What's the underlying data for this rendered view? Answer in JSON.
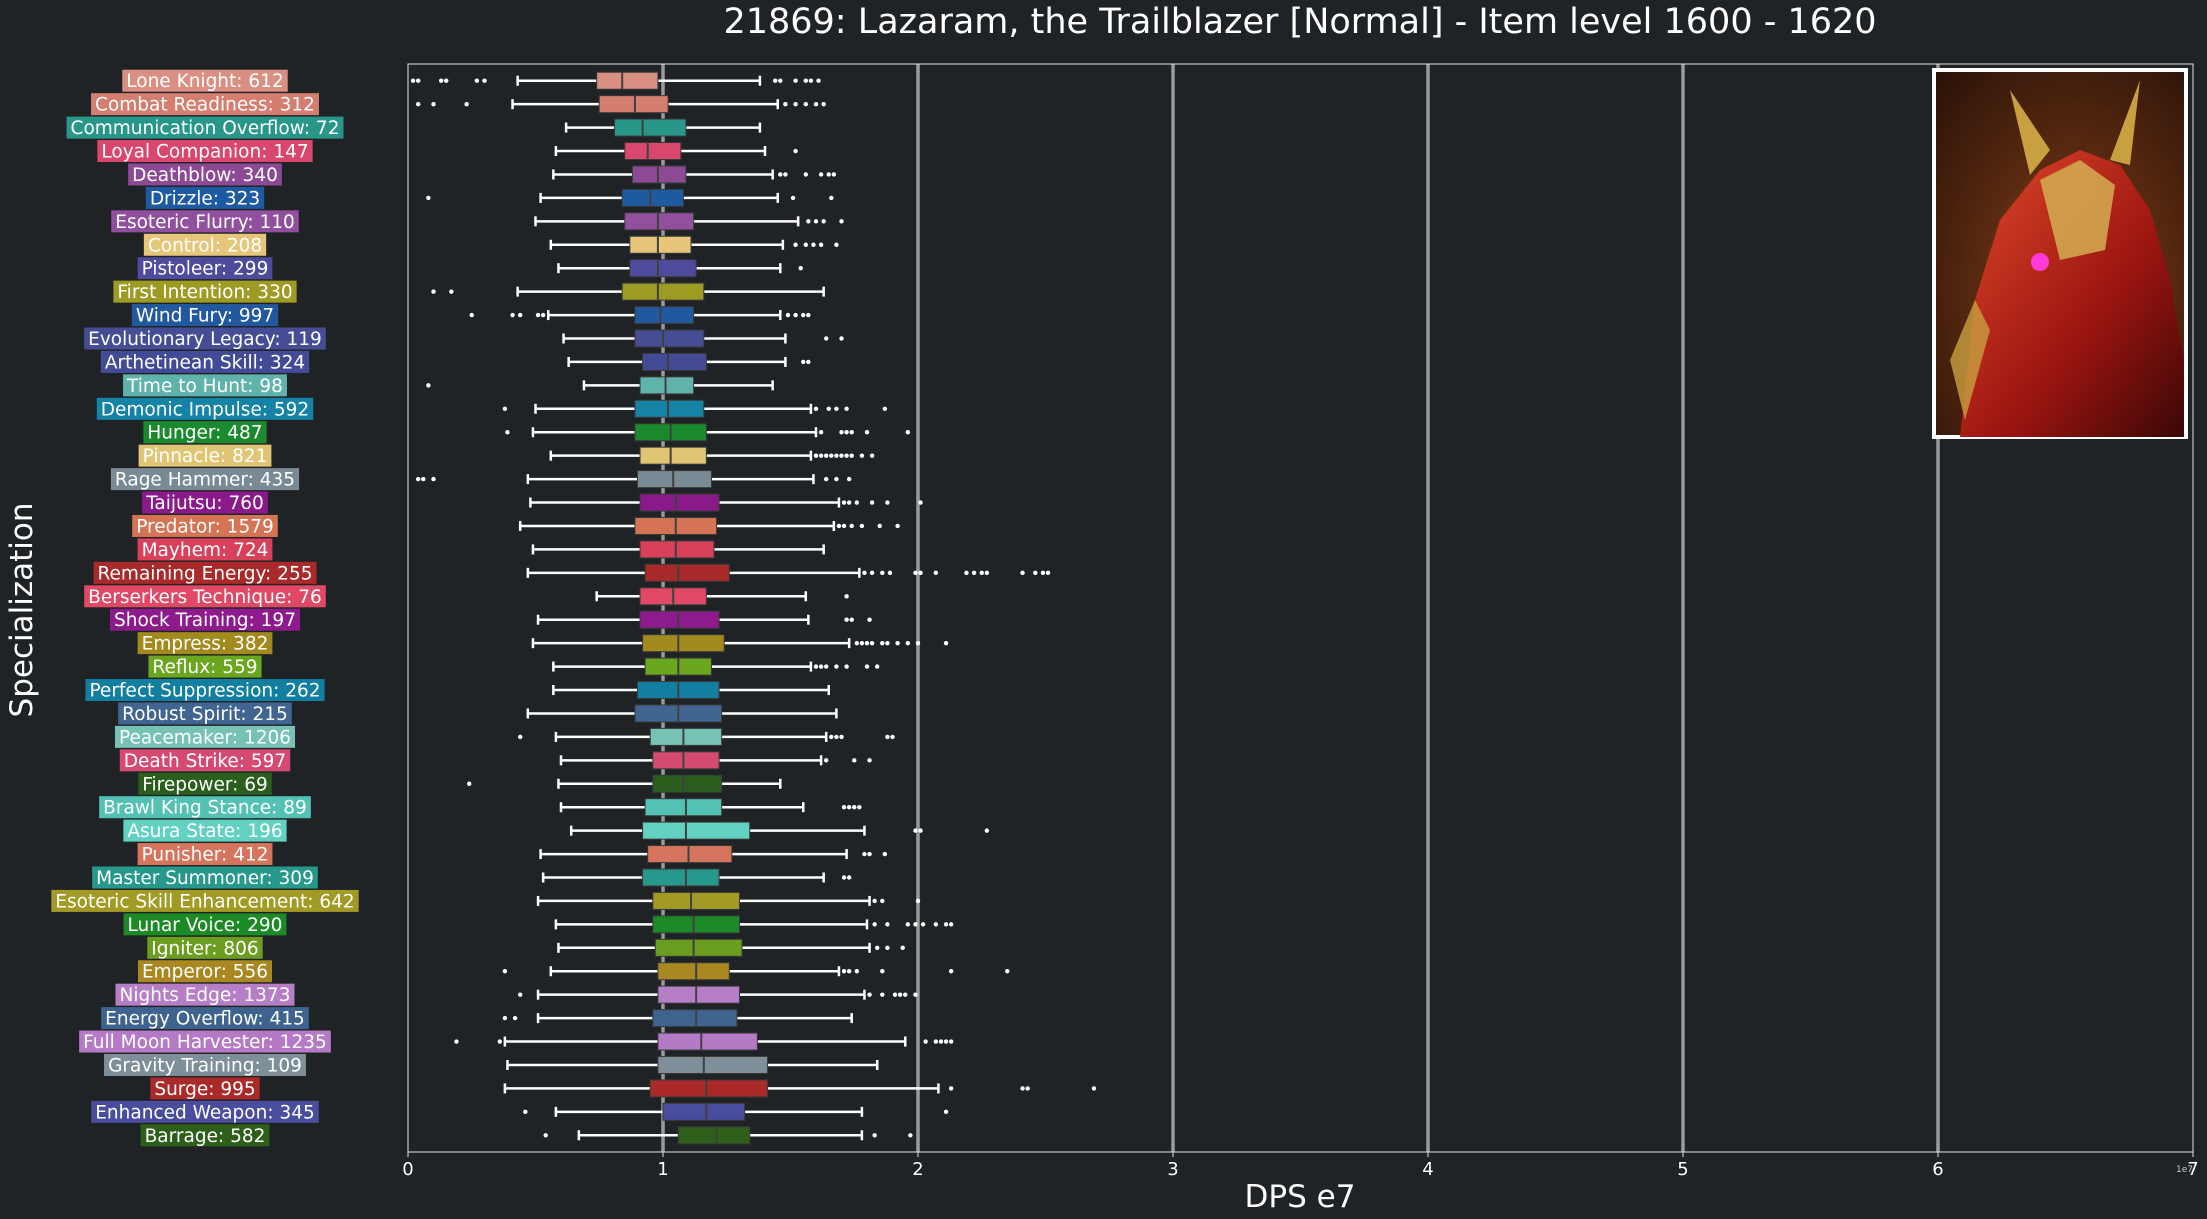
{
  "title": "21869: Lazaram, the Trailblazer [Normal] - Item level 1600 - 1620",
  "chart_data": {
    "type": "boxplot",
    "title": "21869: Lazaram, the Trailblazer [Normal] - Item level 1600 - 1620",
    "xlabel": "DPS e7",
    "ylabel": "Specialization",
    "xlim": [
      0,
      7
    ],
    "x_ticks": [
      "0",
      "1",
      "2",
      "3",
      "4",
      "5",
      "6",
      "7"
    ],
    "x_offset_label": "1e7",
    "grid": "vertical",
    "series": [
      {
        "label": "Lone Knight: 612",
        "color": "#d98f82",
        "whislo": 0.43,
        "q1": 0.74,
        "med": 0.84,
        "q3": 0.98,
        "whishi": 1.38,
        "fliers": [
          0.02,
          0.04,
          0.13,
          0.15,
          0.27,
          0.3,
          1.44,
          1.46,
          1.52,
          1.56,
          1.58,
          1.61
        ]
      },
      {
        "label": "Combat Readiness: 312",
        "color": "#d47e70",
        "whislo": 0.41,
        "q1": 0.75,
        "med": 0.89,
        "q3": 1.02,
        "whishi": 1.45,
        "fliers": [
          0.04,
          0.1,
          0.23,
          1.48,
          1.52,
          1.56,
          1.6,
          1.63
        ]
      },
      {
        "label": "Communication Overflow: 72",
        "color": "#28978a",
        "whislo": 0.62,
        "q1": 0.81,
        "med": 0.92,
        "q3": 1.09,
        "whishi": 1.38,
        "fliers": []
      },
      {
        "label": "Loyal Companion: 147",
        "color": "#d9476c",
        "whislo": 0.58,
        "q1": 0.85,
        "med": 0.94,
        "q3": 1.07,
        "whishi": 1.4,
        "fliers": [
          1.52
        ]
      },
      {
        "label": "Deathblow: 340",
        "color": "#8c4a94",
        "whislo": 0.57,
        "q1": 0.88,
        "med": 0.98,
        "q3": 1.09,
        "whishi": 1.43,
        "fliers": [
          1.46,
          1.48,
          1.56,
          1.62,
          1.65,
          1.67
        ]
      },
      {
        "label": "Drizzle: 323",
        "color": "#1e5aa1",
        "whislo": 0.52,
        "q1": 0.84,
        "med": 0.95,
        "q3": 1.08,
        "whishi": 1.45,
        "fliers": [
          0.08,
          1.51,
          1.66
        ]
      },
      {
        "label": "Esoteric Flurry: 110",
        "color": "#91509e",
        "whislo": 0.5,
        "q1": 0.85,
        "med": 0.98,
        "q3": 1.12,
        "whishi": 1.53,
        "fliers": [
          1.57,
          1.6,
          1.63,
          1.7
        ]
      },
      {
        "label": "Control: 208",
        "color": "#e6c67a",
        "whislo": 0.56,
        "q1": 0.87,
        "med": 0.98,
        "q3": 1.11,
        "whishi": 1.47,
        "fliers": [
          1.52,
          1.56,
          1.59,
          1.62,
          1.68
        ]
      },
      {
        "label": "Pistoleer: 299",
        "color": "#4e4b9c",
        "whislo": 0.59,
        "q1": 0.87,
        "med": 0.98,
        "q3": 1.13,
        "whishi": 1.46,
        "fliers": [
          1.54
        ]
      },
      {
        "label": "First Intention: 330",
        "color": "#9e9b24",
        "whislo": 0.43,
        "q1": 0.84,
        "med": 0.98,
        "q3": 1.16,
        "whishi": 1.63,
        "fliers": [
          0.1,
          0.17
        ]
      },
      {
        "label": "Wind Fury: 997",
        "color": "#22599e",
        "whislo": 0.55,
        "q1": 0.89,
        "med": 0.99,
        "q3": 1.12,
        "whishi": 1.46,
        "fliers": [
          0.25,
          0.41,
          0.44,
          0.51,
          0.53,
          1.49,
          1.52,
          1.55,
          1.57
        ]
      },
      {
        "label": "Evolutionary Legacy: 119",
        "color": "#464d94",
        "whislo": 0.61,
        "q1": 0.89,
        "med": 1.0,
        "q3": 1.16,
        "whishi": 1.48,
        "fliers": [
          1.64,
          1.7
        ]
      },
      {
        "label": "Arthetinean Skill: 324",
        "color": "#444b96",
        "whislo": 0.63,
        "q1": 0.92,
        "med": 1.02,
        "q3": 1.17,
        "whishi": 1.48,
        "fliers": [
          1.55,
          1.57
        ]
      },
      {
        "label": "Time to Hunt: 98",
        "color": "#5fb3ab",
        "whislo": 0.69,
        "q1": 0.91,
        "med": 1.01,
        "q3": 1.12,
        "whishi": 1.43,
        "fliers": [
          0.08
        ]
      },
      {
        "label": "Demonic Impulse: 592",
        "color": "#1583a6",
        "whislo": 0.5,
        "q1": 0.89,
        "med": 1.02,
        "q3": 1.16,
        "whishi": 1.58,
        "fliers": [
          0.38,
          1.6,
          1.65,
          1.68,
          1.72,
          1.87
        ]
      },
      {
        "label": "Hunger: 487",
        "color": "#1b8a2e",
        "whislo": 0.49,
        "q1": 0.89,
        "med": 1.03,
        "q3": 1.17,
        "whishi": 1.6,
        "fliers": [
          0.39,
          1.62,
          1.7,
          1.72,
          1.74,
          1.8,
          1.96
        ]
      },
      {
        "label": "Pinnacle: 821",
        "color": "#e0c674",
        "whislo": 0.56,
        "q1": 0.91,
        "med": 1.03,
        "q3": 1.17,
        "whishi": 1.58,
        "fliers": [
          1.6,
          1.62,
          1.64,
          1.66,
          1.68,
          1.7,
          1.72,
          1.74,
          1.78,
          1.82
        ]
      },
      {
        "label": "Rage Hammer: 435",
        "color": "#7a8a94",
        "whislo": 0.47,
        "q1": 0.9,
        "med": 1.04,
        "q3": 1.19,
        "whishi": 1.59,
        "fliers": [
          0.04,
          0.06,
          0.1,
          1.64,
          1.68,
          1.73
        ]
      },
      {
        "label": "Taijutsu: 760",
        "color": "#8a1a8a",
        "whislo": 0.48,
        "q1": 0.91,
        "med": 1.05,
        "q3": 1.22,
        "whishi": 1.69,
        "fliers": [
          1.71,
          1.73,
          1.76,
          1.82,
          1.88,
          2.01
        ]
      },
      {
        "label": "Predator: 1579",
        "color": "#d47454",
        "whislo": 0.44,
        "q1": 0.89,
        "med": 1.05,
        "q3": 1.21,
        "whishi": 1.67,
        "fliers": [
          1.69,
          1.71,
          1.74,
          1.78,
          1.85,
          1.92
        ]
      },
      {
        "label": "Mayhem: 724",
        "color": "#d9405a",
        "whislo": 0.49,
        "q1": 0.91,
        "med": 1.05,
        "q3": 1.2,
        "whishi": 1.63,
        "fliers": []
      },
      {
        "label": "Remaining Energy: 255",
        "color": "#a82a2a",
        "whislo": 0.47,
        "q1": 0.93,
        "med": 1.06,
        "q3": 1.26,
        "whishi": 1.77,
        "fliers": [
          1.79,
          1.82,
          1.86,
          1.89,
          1.99,
          2.01,
          2.07,
          2.19,
          2.22,
          2.25,
          2.27,
          2.41,
          2.46,
          2.49,
          2.51
        ]
      },
      {
        "label": "Berserkers Technique: 76",
        "color": "#e04866",
        "whislo": 0.74,
        "q1": 0.91,
        "med": 1.04,
        "q3": 1.17,
        "whishi": 1.56,
        "fliers": [
          1.72
        ]
      },
      {
        "label": "Shock Training: 197",
        "color": "#8e1b8e",
        "whislo": 0.51,
        "q1": 0.91,
        "med": 1.06,
        "q3": 1.22,
        "whishi": 1.57,
        "fliers": [
          1.72,
          1.74,
          1.81
        ]
      },
      {
        "label": "Empress: 382",
        "color": "#a38a1e",
        "whislo": 0.49,
        "q1": 0.92,
        "med": 1.06,
        "q3": 1.24,
        "whishi": 1.73,
        "fliers": [
          1.76,
          1.78,
          1.8,
          1.82,
          1.86,
          1.88,
          1.92,
          1.96,
          2.0,
          2.11
        ]
      },
      {
        "label": "Reflux: 559",
        "color": "#6aa61e",
        "whislo": 0.57,
        "q1": 0.93,
        "med": 1.06,
        "q3": 1.19,
        "whishi": 1.58,
        "fliers": [
          1.6,
          1.62,
          1.64,
          1.68,
          1.72,
          1.8,
          1.84
        ]
      },
      {
        "label": "Perfect Suppression: 262",
        "color": "#127ea0",
        "whislo": 0.57,
        "q1": 0.9,
        "med": 1.06,
        "q3": 1.22,
        "whishi": 1.65,
        "fliers": []
      },
      {
        "label": "Robust Spirit: 215",
        "color": "#3f6590",
        "whislo": 0.47,
        "q1": 0.89,
        "med": 1.06,
        "q3": 1.23,
        "whishi": 1.68,
        "fliers": []
      },
      {
        "label": "Peacemaker: 1206",
        "color": "#76c2b4",
        "whislo": 0.58,
        "q1": 0.95,
        "med": 1.08,
        "q3": 1.23,
        "whishi": 1.64,
        "fliers": [
          0.44,
          1.66,
          1.68,
          1.7,
          1.88,
          1.9
        ]
      },
      {
        "label": "Death Strike: 597",
        "color": "#d54a70",
        "whislo": 0.6,
        "q1": 0.96,
        "med": 1.08,
        "q3": 1.22,
        "whishi": 1.62,
        "fliers": [
          1.64,
          1.75,
          1.81
        ]
      },
      {
        "label": "Firepower: 69",
        "color": "#2a5e1c",
        "whislo": 0.59,
        "q1": 0.96,
        "med": 1.08,
        "q3": 1.23,
        "whishi": 1.46,
        "fliers": [
          0.24
        ]
      },
      {
        "label": "Brawl King Stance: 89",
        "color": "#53c2b4",
        "whislo": 0.6,
        "q1": 0.93,
        "med": 1.09,
        "q3": 1.23,
        "whishi": 1.55,
        "fliers": [
          1.71,
          1.73,
          1.75,
          1.77
        ]
      },
      {
        "label": "Asura State: 196",
        "color": "#62d1c2",
        "whislo": 0.64,
        "q1": 0.92,
        "med": 1.09,
        "q3": 1.34,
        "whishi": 1.79,
        "fliers": [
          1.99,
          2.01,
          2.27
        ]
      },
      {
        "label": "Punisher: 412",
        "color": "#d6755e",
        "whislo": 0.52,
        "q1": 0.94,
        "med": 1.1,
        "q3": 1.27,
        "whishi": 1.72,
        "fliers": [
          1.79,
          1.81,
          1.87
        ]
      },
      {
        "label": "Master Summoner: 309",
        "color": "#27988c",
        "whislo": 0.53,
        "q1": 0.92,
        "med": 1.09,
        "q3": 1.22,
        "whishi": 1.63,
        "fliers": [
          1.71,
          1.73
        ]
      },
      {
        "label": "Esoteric Skill Enhancement: 642",
        "color": "#a19a24",
        "whislo": 0.51,
        "q1": 0.96,
        "med": 1.11,
        "q3": 1.3,
        "whishi": 1.81,
        "fliers": [
          1.83,
          1.86,
          2.0
        ]
      },
      {
        "label": "Lunar Voice: 290",
        "color": "#1c8a26",
        "whislo": 0.58,
        "q1": 0.96,
        "med": 1.12,
        "q3": 1.3,
        "whishi": 1.8,
        "fliers": [
          1.83,
          1.88,
          1.96,
          1.99,
          2.02,
          2.07,
          2.11,
          2.13
        ]
      },
      {
        "label": "Igniter: 806",
        "color": "#6b9e20",
        "whislo": 0.59,
        "q1": 0.97,
        "med": 1.12,
        "q3": 1.31,
        "whishi": 1.81,
        "fliers": [
          1.84,
          1.88,
          1.94
        ]
      },
      {
        "label": "Emperor: 556",
        "color": "#a98822",
        "whislo": 0.56,
        "q1": 0.98,
        "med": 1.13,
        "q3": 1.26,
        "whishi": 1.69,
        "fliers": [
          0.38,
          1.71,
          1.73,
          1.76,
          1.86,
          2.13,
          2.35
        ]
      },
      {
        "label": "Nights Edge: 1373",
        "color": "#b67ec6",
        "whislo": 0.51,
        "q1": 0.98,
        "med": 1.13,
        "q3": 1.3,
        "whishi": 1.79,
        "fliers": [
          0.44,
          1.81,
          1.86,
          1.91,
          1.93,
          1.95,
          1.99
        ]
      },
      {
        "label": "Energy Overflow: 415",
        "color": "#3d638e",
        "whislo": 0.51,
        "q1": 0.96,
        "med": 1.13,
        "q3": 1.29,
        "whishi": 1.74,
        "fliers": [
          0.38,
          0.42
        ]
      },
      {
        "label": "Full Moon Harvester: 1235",
        "color": "#b57ac6",
        "whislo": 0.38,
        "q1": 0.98,
        "med": 1.15,
        "q3": 1.37,
        "whishi": 1.95,
        "fliers": [
          0.19,
          0.36,
          2.03,
          2.07,
          2.09,
          2.11,
          2.13
        ]
      },
      {
        "label": "Gravity Training: 109",
        "color": "#7f8f99",
        "whislo": 0.39,
        "q1": 0.98,
        "med": 1.16,
        "q3": 1.41,
        "whishi": 1.84,
        "fliers": []
      },
      {
        "label": "Surge: 995",
        "color": "#aa2a2a",
        "whislo": 0.38,
        "q1": 0.95,
        "med": 1.17,
        "q3": 1.41,
        "whishi": 2.08,
        "fliers": [
          2.13,
          2.41,
          2.43,
          2.69
        ]
      },
      {
        "label": "Enhanced Weapon: 345",
        "color": "#4a4c9e",
        "whislo": 0.58,
        "q1": 1.0,
        "med": 1.17,
        "q3": 1.32,
        "whishi": 1.78,
        "fliers": [
          0.46,
          2.11
        ]
      },
      {
        "label": "Barrage: 582",
        "color": "#2d5e1a",
        "whislo": 0.67,
        "q1": 1.06,
        "med": 1.21,
        "q3": 1.34,
        "whishi": 1.78,
        "fliers": [
          0.54,
          1.83,
          1.97
        ]
      }
    ]
  }
}
